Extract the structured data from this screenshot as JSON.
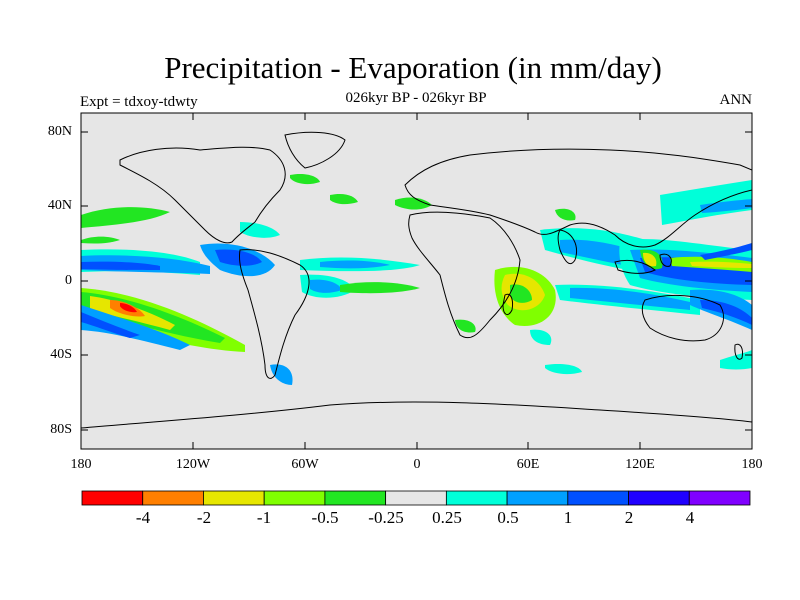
{
  "title": "Precipitation - Evaporation (in mm/day)",
  "subtitle": "026kyr BP - 026kyr BP",
  "left_label": "Expt = tdxoy-tdwty",
  "right_label": "ANN",
  "y_axis_labels": [
    "80N",
    "40N",
    "0",
    "40S",
    "80S"
  ],
  "x_axis_labels": [
    "180",
    "120W",
    "60W",
    "0",
    "60E",
    "120E",
    "180"
  ],
  "colorbar": {
    "colors": [
      "#ff0000",
      "#ff7f00",
      "#e6e600",
      "#80ff00",
      "#22e622",
      "#e6e6e6",
      "#00ffd9",
      "#00a0ff",
      "#0050ff",
      "#2000ff",
      "#8000ff"
    ],
    "labels": [
      "-4",
      "-2",
      "-1",
      "-0.5",
      "-0.25",
      "0.25",
      "0.5",
      "1",
      "2",
      "4"
    ]
  },
  "map_background": "#e6e6e6"
}
